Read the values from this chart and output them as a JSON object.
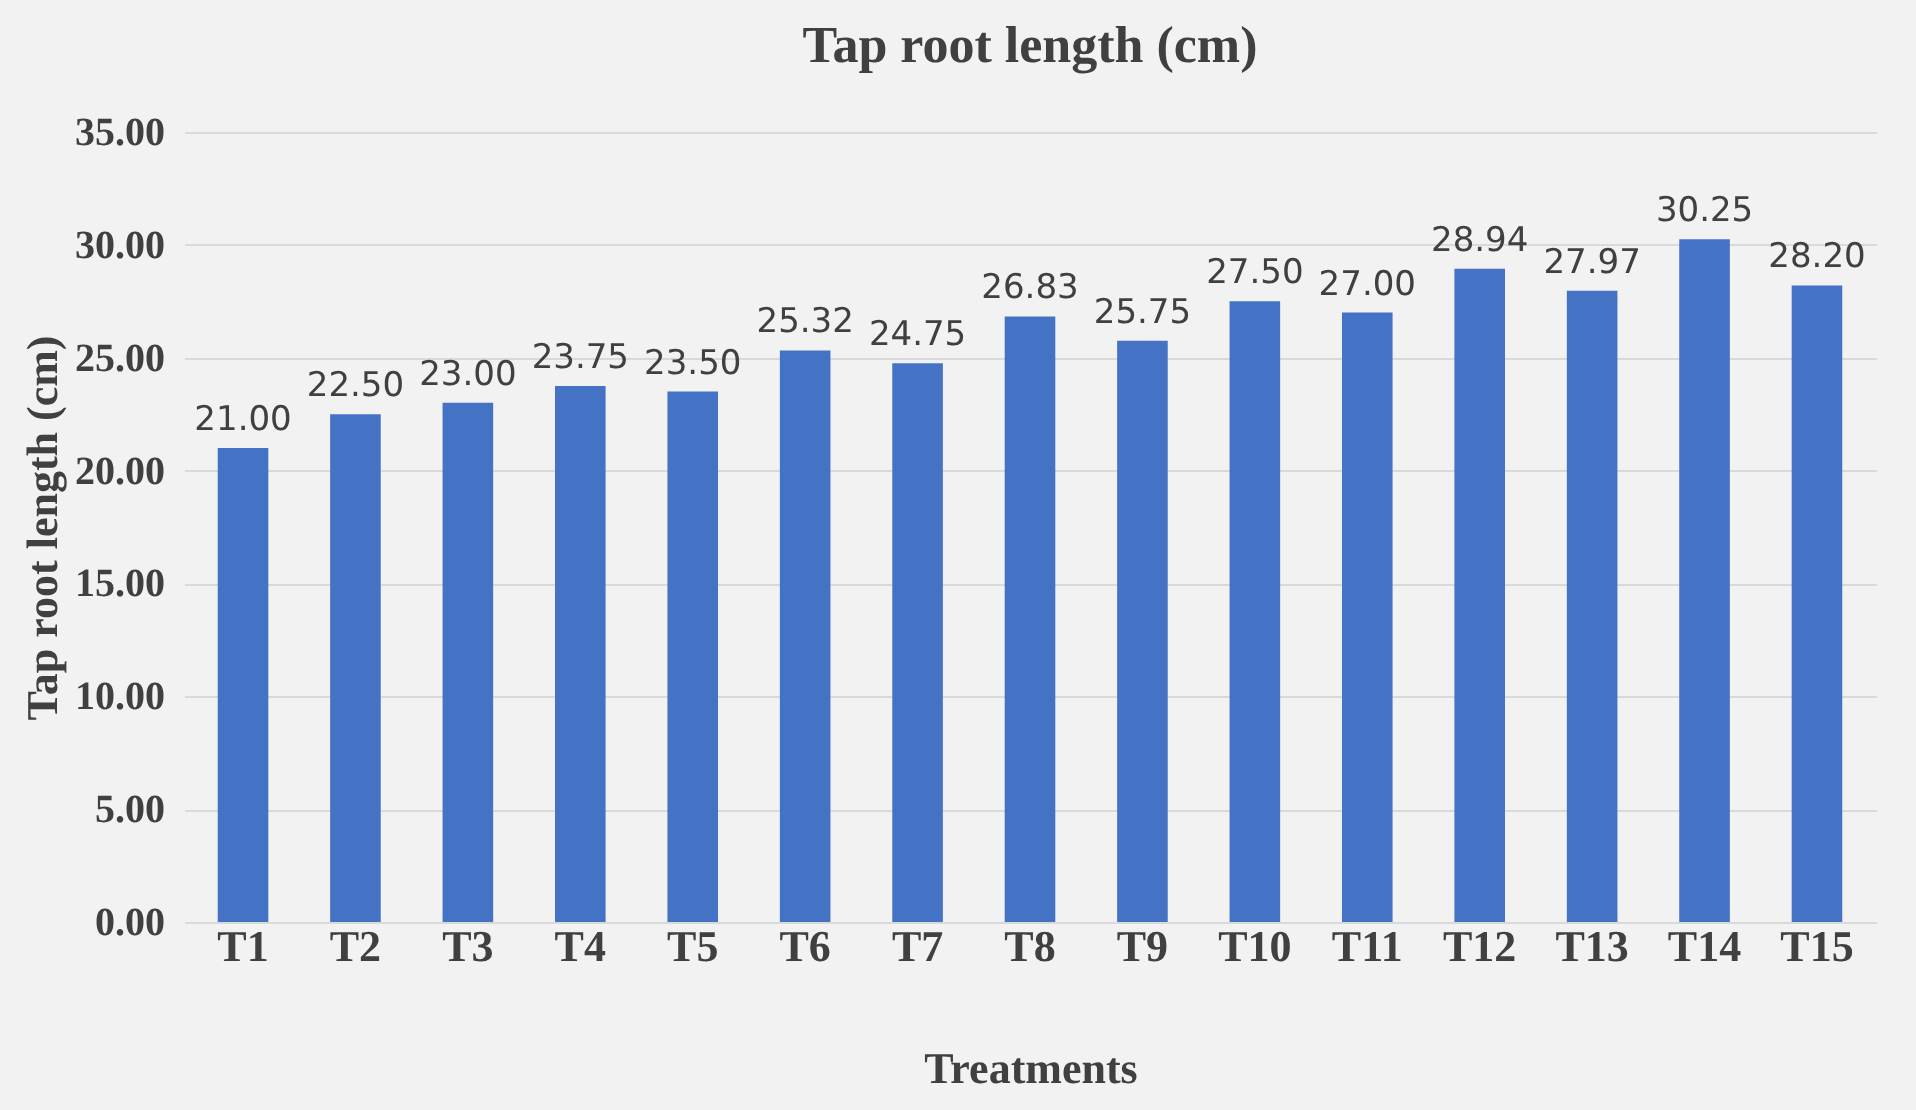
{
  "chart_data": {
    "type": "bar",
    "title": "Tap root length (cm)",
    "xlabel": "Treatments",
    "ylabel": "Tap root length (cm)",
    "categories": [
      "T1",
      "T2",
      "T3",
      "T4",
      "T5",
      "T6",
      "T7",
      "T8",
      "T9",
      "T10",
      "T11",
      "T12",
      "T13",
      "T14",
      "T15"
    ],
    "values": [
      21.0,
      22.5,
      23.0,
      23.75,
      23.5,
      25.32,
      24.75,
      26.83,
      25.75,
      27.5,
      27.0,
      28.94,
      27.97,
      30.25,
      28.2
    ],
    "value_labels": [
      "21.00",
      "22.50",
      "23.00",
      "23.75",
      "23.50",
      "25.32",
      "24.75",
      "26.83",
      "25.75",
      "27.50",
      "27.00",
      "28.94",
      "27.97",
      "30.25",
      "28.20"
    ],
    "color": "#4472c4",
    "ylim": [
      0,
      35
    ],
    "yticks": [
      {
        "value": 0,
        "label": "0.00"
      },
      {
        "value": 5,
        "label": "5.00"
      },
      {
        "value": 10,
        "label": "10.00"
      },
      {
        "value": 15,
        "label": "15.00"
      },
      {
        "value": 20,
        "label": "20.00"
      },
      {
        "value": 25,
        "label": "25.00"
      },
      {
        "value": 30,
        "label": "30.00"
      },
      {
        "value": 35,
        "label": "35.00"
      }
    ],
    "grid": "y"
  }
}
